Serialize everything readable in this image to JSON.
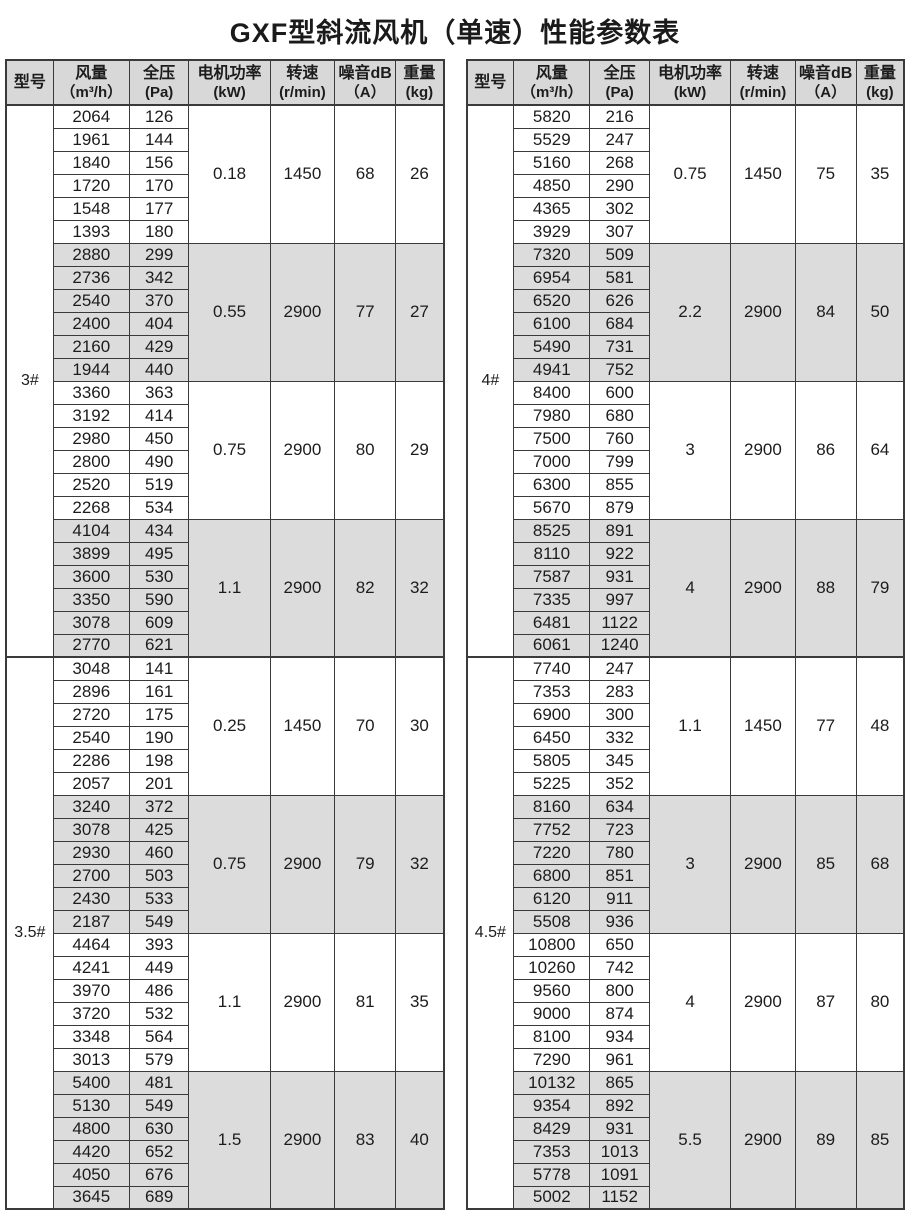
{
  "title": "GXF型斜流风机（单速）性能参数表",
  "columns": [
    {
      "key": "model",
      "line1": "型号",
      "line2": ""
    },
    {
      "key": "flow",
      "line1": "风量",
      "line2": "（m³/h）"
    },
    {
      "key": "pressure",
      "line1": "全压",
      "line2": "(Pa)"
    },
    {
      "key": "power",
      "line1": "电机功率",
      "line2": "(kW)"
    },
    {
      "key": "speed",
      "line1": "转速",
      "line2": "(r/min)"
    },
    {
      "key": "noise",
      "line1": "噪音dB",
      "line2": "（A）"
    },
    {
      "key": "weight",
      "line1": "重量",
      "line2": "(kg)"
    }
  ],
  "colors": {
    "header_bg": "#d8d8d8",
    "shaded_band_bg": "#dcdcdc",
    "border": "#3a3a3a"
  },
  "tables": [
    {
      "models": [
        {
          "model": "3#",
          "blocks": [
            {
              "shaded": false,
              "power": "0.18",
              "speed": "1450",
              "noise": "68",
              "weight": "26",
              "rows": [
                [
                  "2064",
                  "126"
                ],
                [
                  "1961",
                  "144"
                ],
                [
                  "1840",
                  "156"
                ],
                [
                  "1720",
                  "170"
                ],
                [
                  "1548",
                  "177"
                ],
                [
                  "1393",
                  "180"
                ]
              ]
            },
            {
              "shaded": true,
              "power": "0.55",
              "speed": "2900",
              "noise": "77",
              "weight": "27",
              "rows": [
                [
                  "2880",
                  "299"
                ],
                [
                  "2736",
                  "342"
                ],
                [
                  "2540",
                  "370"
                ],
                [
                  "2400",
                  "404"
                ],
                [
                  "2160",
                  "429"
                ],
                [
                  "1944",
                  "440"
                ]
              ]
            },
            {
              "shaded": false,
              "power": "0.75",
              "speed": "2900",
              "noise": "80",
              "weight": "29",
              "rows": [
                [
                  "3360",
                  "363"
                ],
                [
                  "3192",
                  "414"
                ],
                [
                  "2980",
                  "450"
                ],
                [
                  "2800",
                  "490"
                ],
                [
                  "2520",
                  "519"
                ],
                [
                  "2268",
                  "534"
                ]
              ]
            },
            {
              "shaded": true,
              "power": "1.1",
              "speed": "2900",
              "noise": "82",
              "weight": "32",
              "rows": [
                [
                  "4104",
                  "434"
                ],
                [
                  "3899",
                  "495"
                ],
                [
                  "3600",
                  "530"
                ],
                [
                  "3350",
                  "590"
                ],
                [
                  "3078",
                  "609"
                ],
                [
                  "2770",
                  "621"
                ]
              ]
            }
          ]
        },
        {
          "model": "3.5#",
          "blocks": [
            {
              "shaded": false,
              "power": "0.25",
              "speed": "1450",
              "noise": "70",
              "weight": "30",
              "rows": [
                [
                  "3048",
                  "141"
                ],
                [
                  "2896",
                  "161"
                ],
                [
                  "2720",
                  "175"
                ],
                [
                  "2540",
                  "190"
                ],
                [
                  "2286",
                  "198"
                ],
                [
                  "2057",
                  "201"
                ]
              ]
            },
            {
              "shaded": true,
              "power": "0.75",
              "speed": "2900",
              "noise": "79",
              "weight": "32",
              "rows": [
                [
                  "3240",
                  "372"
                ],
                [
                  "3078",
                  "425"
                ],
                [
                  "2930",
                  "460"
                ],
                [
                  "2700",
                  "503"
                ],
                [
                  "2430",
                  "533"
                ],
                [
                  "2187",
                  "549"
                ]
              ]
            },
            {
              "shaded": false,
              "power": "1.1",
              "speed": "2900",
              "noise": "81",
              "weight": "35",
              "rows": [
                [
                  "4464",
                  "393"
                ],
                [
                  "4241",
                  "449"
                ],
                [
                  "3970",
                  "486"
                ],
                [
                  "3720",
                  "532"
                ],
                [
                  "3348",
                  "564"
                ],
                [
                  "3013",
                  "579"
                ]
              ]
            },
            {
              "shaded": true,
              "power": "1.5",
              "speed": "2900",
              "noise": "83",
              "weight": "40",
              "rows": [
                [
                  "5400",
                  "481"
                ],
                [
                  "5130",
                  "549"
                ],
                [
                  "4800",
                  "630"
                ],
                [
                  "4420",
                  "652"
                ],
                [
                  "4050",
                  "676"
                ],
                [
                  "3645",
                  "689"
                ]
              ]
            }
          ]
        }
      ]
    },
    {
      "models": [
        {
          "model": "4#",
          "blocks": [
            {
              "shaded": false,
              "power": "0.75",
              "speed": "1450",
              "noise": "75",
              "weight": "35",
              "rows": [
                [
                  "5820",
                  "216"
                ],
                [
                  "5529",
                  "247"
                ],
                [
                  "5160",
                  "268"
                ],
                [
                  "4850",
                  "290"
                ],
                [
                  "4365",
                  "302"
                ],
                [
                  "3929",
                  "307"
                ]
              ]
            },
            {
              "shaded": true,
              "power": "2.2",
              "speed": "2900",
              "noise": "84",
              "weight": "50",
              "rows": [
                [
                  "7320",
                  "509"
                ],
                [
                  "6954",
                  "581"
                ],
                [
                  "6520",
                  "626"
                ],
                [
                  "6100",
                  "684"
                ],
                [
                  "5490",
                  "731"
                ],
                [
                  "4941",
                  "752"
                ]
              ]
            },
            {
              "shaded": false,
              "power": "3",
              "speed": "2900",
              "noise": "86",
              "weight": "64",
              "rows": [
                [
                  "8400",
                  "600"
                ],
                [
                  "7980",
                  "680"
                ],
                [
                  "7500",
                  "760"
                ],
                [
                  "7000",
                  "799"
                ],
                [
                  "6300",
                  "855"
                ],
                [
                  "5670",
                  "879"
                ]
              ]
            },
            {
              "shaded": true,
              "power": "4",
              "speed": "2900",
              "noise": "88",
              "weight": "79",
              "rows": [
                [
                  "8525",
                  "891"
                ],
                [
                  "8110",
                  "922"
                ],
                [
                  "7587",
                  "931"
                ],
                [
                  "7335",
                  "997"
                ],
                [
                  "6481",
                  "1122"
                ],
                [
                  "6061",
                  "1240"
                ]
              ]
            }
          ]
        },
        {
          "model": "4.5#",
          "blocks": [
            {
              "shaded": false,
              "power": "1.1",
              "speed": "1450",
              "noise": "77",
              "weight": "48",
              "rows": [
                [
                  "7740",
                  "247"
                ],
                [
                  "7353",
                  "283"
                ],
                [
                  "6900",
                  "300"
                ],
                [
                  "6450",
                  "332"
                ],
                [
                  "5805",
                  "345"
                ],
                [
                  "5225",
                  "352"
                ]
              ]
            },
            {
              "shaded": true,
              "power": "3",
              "speed": "2900",
              "noise": "85",
              "weight": "68",
              "rows": [
                [
                  "8160",
                  "634"
                ],
                [
                  "7752",
                  "723"
                ],
                [
                  "7220",
                  "780"
                ],
                [
                  "6800",
                  "851"
                ],
                [
                  "6120",
                  "911"
                ],
                [
                  "5508",
                  "936"
                ]
              ]
            },
            {
              "shaded": false,
              "power": "4",
              "speed": "2900",
              "noise": "87",
              "weight": "80",
              "rows": [
                [
                  "10800",
                  "650"
                ],
                [
                  "10260",
                  "742"
                ],
                [
                  "9560",
                  "800"
                ],
                [
                  "9000",
                  "874"
                ],
                [
                  "8100",
                  "934"
                ],
                [
                  "7290",
                  "961"
                ]
              ]
            },
            {
              "shaded": true,
              "power": "5.5",
              "speed": "2900",
              "noise": "89",
              "weight": "85",
              "rows": [
                [
                  "10132",
                  "865"
                ],
                [
                  "9354",
                  "892"
                ],
                [
                  "8429",
                  "931"
                ],
                [
                  "7353",
                  "1013"
                ],
                [
                  "5778",
                  "1091"
                ],
                [
                  "5002",
                  "1152"
                ]
              ]
            }
          ]
        }
      ]
    }
  ]
}
